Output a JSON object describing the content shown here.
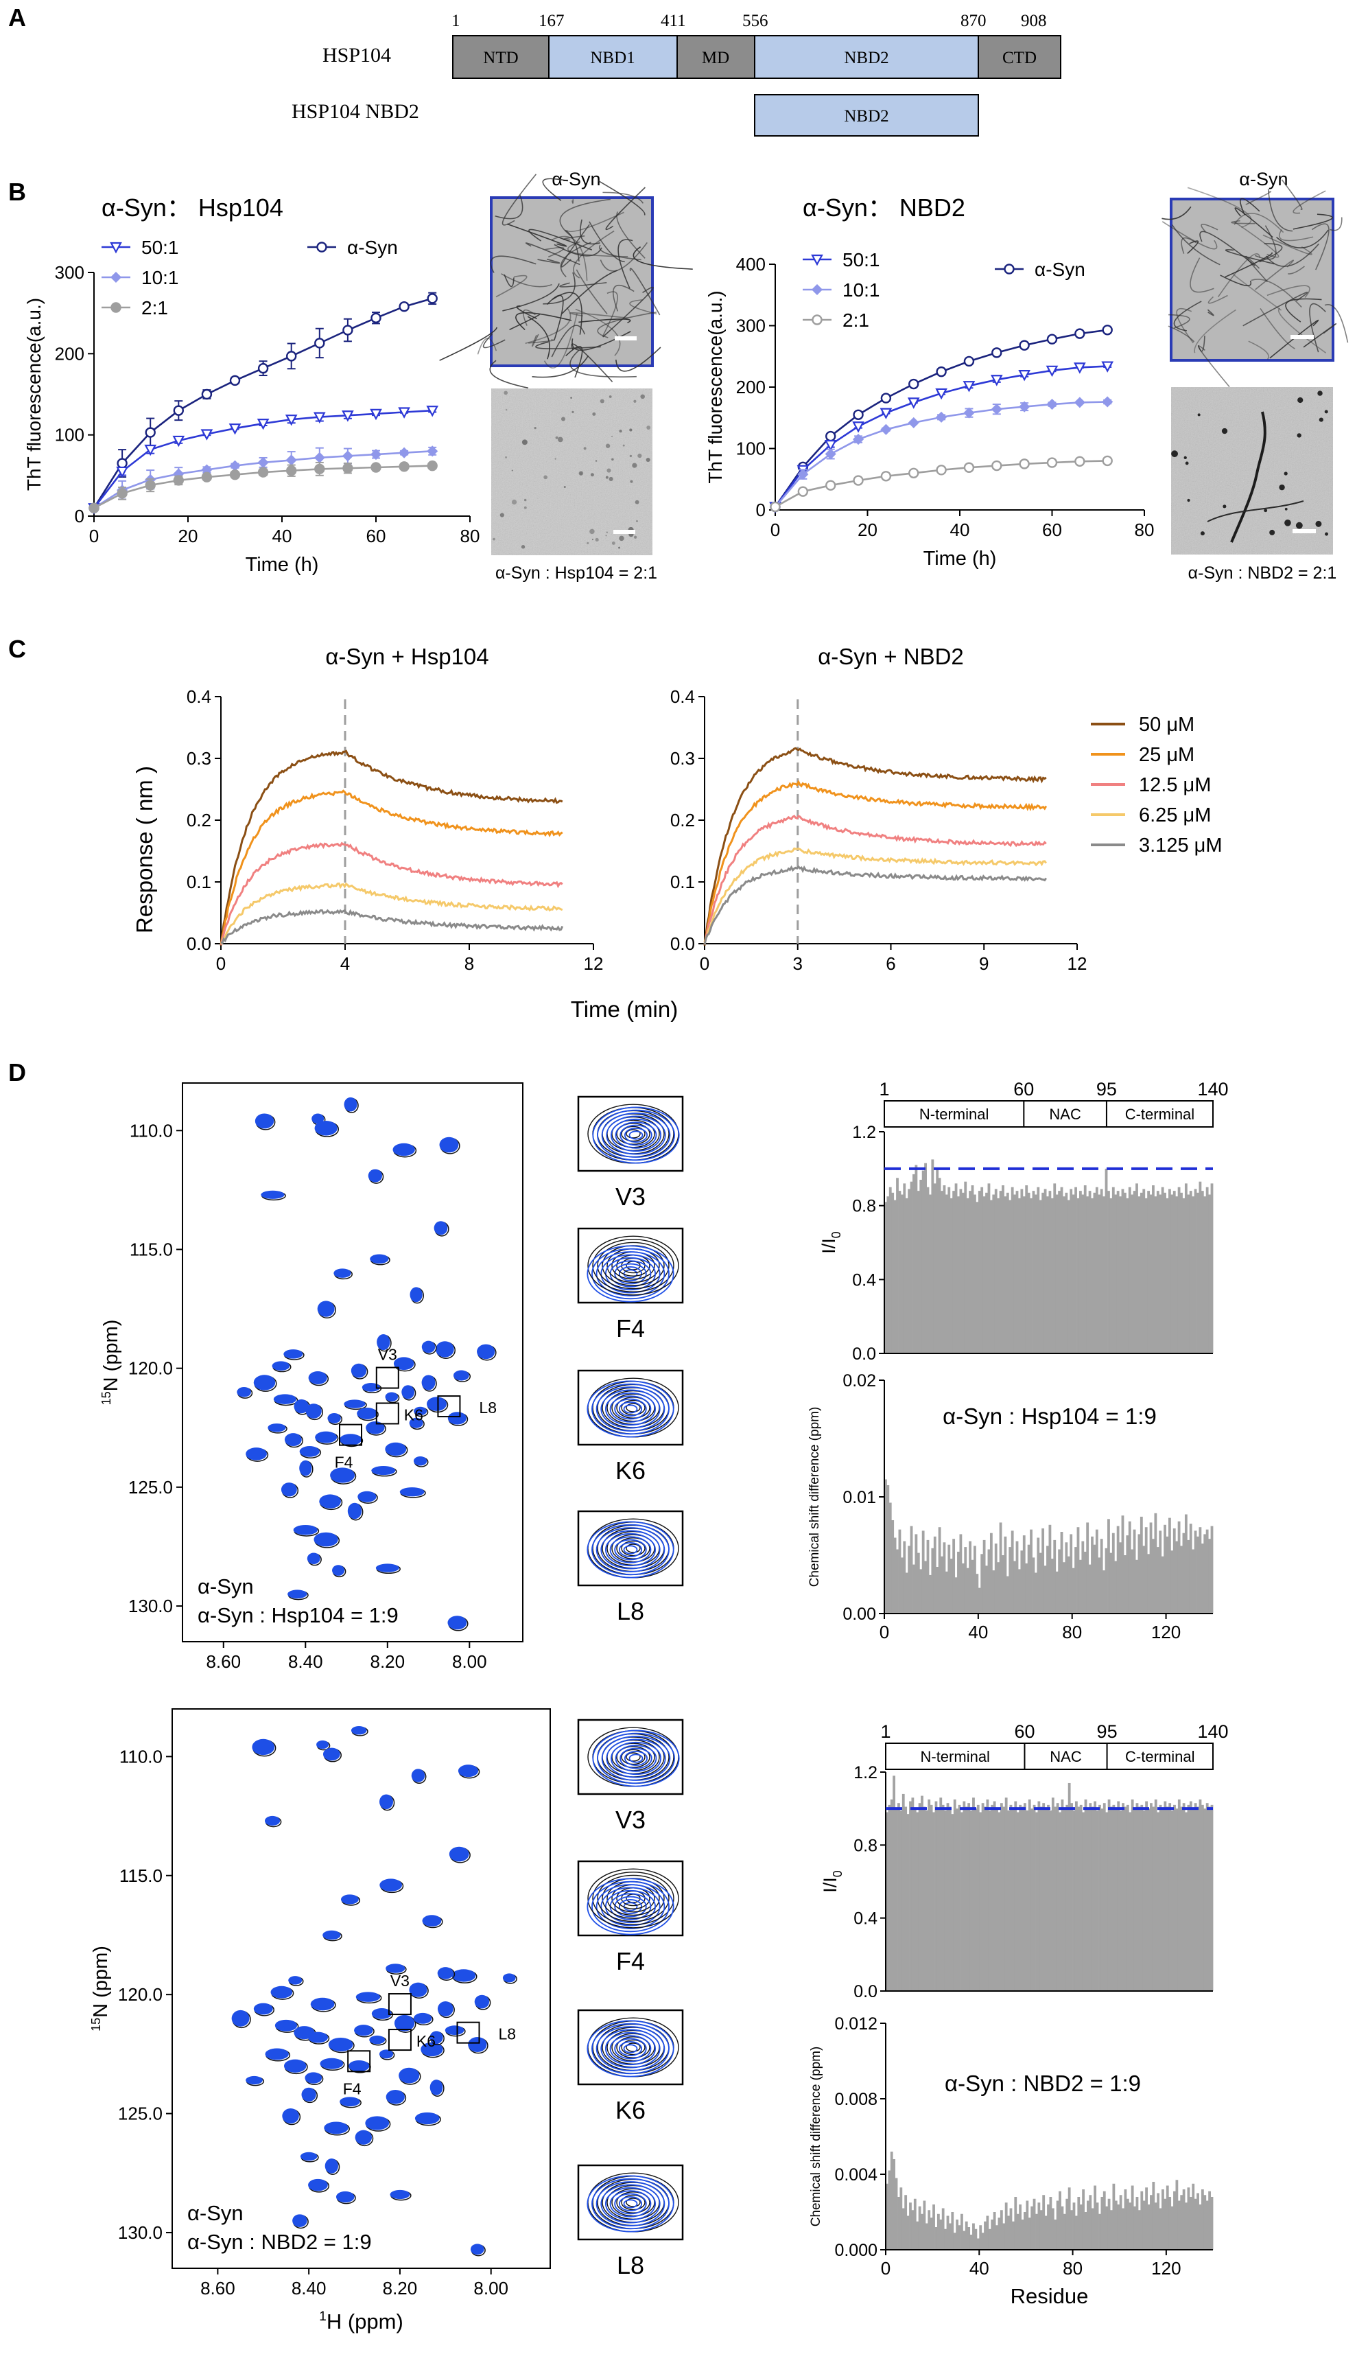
{
  "panel_labels": {
    "A": "A",
    "B": "B",
    "C": "C",
    "D": "D"
  },
  "colors": {
    "domain_gray": "#8c8c8c",
    "domain_blue": "#b7cbe9",
    "dark_navy": "#1a237e",
    "blue": "#2d39d6",
    "light_purple": "#8f97ea",
    "gray_series": "#9e9e9e",
    "nmr_blue": "#1e4fe6",
    "bar_gray": "#a3a3a3",
    "brown": "#8b4f14",
    "orange": "#f0921c",
    "salmon": "#f08080",
    "yellow": "#f5c96a",
    "gray_line": "#8a8a8a"
  },
  "panel_a": {
    "hsp104_label": "HSP104",
    "nbd2_label": "HSP104  NBD2",
    "positions": [
      "1",
      "167",
      "411",
      "556",
      "870",
      "908"
    ],
    "domains": [
      "NTD",
      "NBD1",
      "MD",
      "NBD2",
      "CTD"
    ],
    "nbd2_construct": "NBD2"
  },
  "panel_b": {
    "micrographs": [
      {
        "title": "α-Syn",
        "caption": "α-Syn : Hsp104 = 2:1"
      },
      {
        "title": "α-Syn",
        "caption": "α-Syn : NBD2 = 2:1"
      }
    ]
  },
  "chart_data": [
    {
      "type": "line",
      "title": "α-Syn： Hsp104",
      "xlabel": "Time (h)",
      "ylabel": "ThT fluorescence(a.u.)",
      "xlim": [
        0,
        80
      ],
      "ylim": [
        0,
        300
      ],
      "xticks": [
        "0",
        "20",
        "40",
        "60",
        "80"
      ],
      "yticks": [
        "0",
        "100",
        "200",
        "300"
      ],
      "x": [
        0,
        6,
        12,
        18,
        24,
        30,
        36,
        42,
        48,
        54,
        60,
        66,
        72
      ],
      "series": [
        {
          "name": "α-Syn",
          "values": [
            10,
            65,
            103,
            130,
            150,
            167,
            182,
            197,
            213,
            229,
            244,
            258,
            268
          ]
        },
        {
          "name": "50:1",
          "values": [
            10,
            55,
            82,
            93,
            101,
            108,
            114,
            119,
            122,
            124,
            126,
            128,
            130
          ]
        },
        {
          "name": "10:1",
          "values": [
            10,
            32,
            45,
            52,
            57,
            62,
            66,
            69,
            72,
            74,
            76,
            78,
            80
          ]
        },
        {
          "name": "2:1",
          "values": [
            10,
            28,
            38,
            44,
            48,
            51,
            54,
            56,
            58,
            59,
            60,
            61,
            62
          ]
        }
      ]
    },
    {
      "type": "line",
      "title": "α-Syn： NBD2",
      "xlabel": "Time (h)",
      "ylabel": "ThT fluorescence(a.u.)",
      "xlim": [
        0,
        80
      ],
      "ylim": [
        0,
        400
      ],
      "xticks": [
        "0",
        "20",
        "40",
        "60",
        "80"
      ],
      "yticks": [
        "0",
        "100",
        "200",
        "300",
        "400"
      ],
      "x": [
        0,
        6,
        12,
        18,
        24,
        30,
        36,
        42,
        48,
        54,
        60,
        66,
        72
      ],
      "series": [
        {
          "name": "α-Syn",
          "values": [
            5,
            70,
            120,
            155,
            182,
            205,
            225,
            242,
            256,
            268,
            278,
            287,
            293
          ]
        },
        {
          "name": "50:1",
          "values": [
            5,
            65,
            106,
            136,
            158,
            175,
            190,
            202,
            212,
            220,
            227,
            232,
            234
          ]
        },
        {
          "name": "10:1",
          "values": [
            5,
            58,
            91,
            115,
            131,
            142,
            151,
            158,
            164,
            168,
            172,
            175,
            176
          ]
        },
        {
          "name": "2:1",
          "values": [
            5,
            30,
            40,
            48,
            55,
            60,
            65,
            69,
            72,
            75,
            77,
            79,
            80
          ]
        }
      ]
    },
    {
      "type": "line",
      "title": "α-Syn + Hsp104",
      "xlim": [
        0,
        12
      ],
      "ylim": [
        0,
        0.4
      ],
      "xticks": [
        "0",
        "4",
        "8",
        "12"
      ],
      "yticks": [
        "0.0",
        "0.1",
        "0.2",
        "0.3",
        "0.4"
      ],
      "switch_time": 4,
      "series": [
        {
          "name": "50 μM",
          "assoc_end": 0.31,
          "dissoc_end": 0.227
        },
        {
          "name": "25 μM",
          "assoc_end": 0.245,
          "dissoc_end": 0.175
        },
        {
          "name": "12.5 μM",
          "assoc_end": 0.162,
          "dissoc_end": 0.093
        },
        {
          "name": "6.25 μM",
          "assoc_end": 0.095,
          "dissoc_end": 0.055
        },
        {
          "name": "3.125 μM",
          "assoc_end": 0.052,
          "dissoc_end": 0.024
        }
      ]
    },
    {
      "type": "line",
      "title": "α-Syn + NBD2",
      "xlim": [
        0,
        12
      ],
      "ylim": [
        0,
        0.4
      ],
      "xticks": [
        "0",
        "3",
        "6",
        "9",
        "12"
      ],
      "yticks": [
        "0.0",
        "0.1",
        "0.2",
        "0.3",
        "0.4"
      ],
      "switch_time": 3,
      "series": [
        {
          "name": "50 μM",
          "assoc_end": 0.315,
          "dissoc_end": 0.265
        },
        {
          "name": "25 μM",
          "assoc_end": 0.26,
          "dissoc_end": 0.22
        },
        {
          "name": "12.5 μM",
          "assoc_end": 0.205,
          "dissoc_end": 0.16
        },
        {
          "name": "6.25 μM",
          "assoc_end": 0.152,
          "dissoc_end": 0.13
        },
        {
          "name": "3.125 μM",
          "assoc_end": 0.122,
          "dissoc_end": 0.105
        }
      ]
    },
    {
      "type": "bar",
      "title": "I/I0",
      "ylabel": "I/I",
      "ylabel_sub": "0",
      "ylim": [
        0,
        1.2
      ],
      "yticks": [
        "0.0",
        "0.4",
        "0.8",
        "1.2"
      ],
      "reference_line": 1.0,
      "values": [
        0.82,
        0.85,
        0.9,
        0.87,
        0.83,
        0.95,
        0.88,
        0.86,
        0.92,
        0.84,
        0.89,
        0.93,
        0.97,
        1.02,
        0.88,
        0.94,
        0.99,
        1.03,
        0.9,
        0.86,
        1.05,
        0.92,
        1.0,
        0.95,
        0.88,
        0.91,
        0.86,
        0.9,
        0.84,
        0.88,
        0.92,
        0.85,
        0.89,
        0.87,
        0.93,
        0.84,
        0.88,
        0.91,
        0.86,
        0.82,
        0.88,
        0.9,
        0.85,
        0.87,
        0.92,
        0.83,
        0.86,
        0.89,
        0.84,
        0.88,
        0.91,
        0.85,
        0.87,
        0.83,
        0.9,
        0.86,
        0.88,
        0.84,
        0.89,
        0.85,
        0.91,
        0.87,
        0.84,
        0.88,
        0.86,
        0.9,
        0.83,
        0.87,
        0.89,
        0.85,
        0.88,
        0.84,
        0.92,
        0.86,
        0.88,
        0.9,
        0.85,
        0.87,
        0.83,
        0.89,
        0.86,
        0.9,
        0.84,
        0.88,
        0.86,
        0.91,
        0.85,
        0.88,
        0.84,
        0.87,
        0.9,
        0.86,
        0.89,
        0.85,
        1.0,
        0.88,
        0.84,
        0.9,
        0.86,
        0.88,
        0.85,
        0.89,
        0.87,
        0.84,
        0.9,
        0.86,
        0.88,
        0.92,
        0.85,
        0.87,
        0.89,
        0.84,
        0.88,
        0.86,
        0.91,
        0.85,
        0.88,
        0.86,
        0.9,
        0.87,
        0.84,
        0.89,
        0.86,
        0.88,
        0.85,
        0.9,
        0.87,
        0.84,
        0.92,
        0.86,
        0.88,
        0.85,
        0.89,
        0.87,
        0.93,
        0.88,
        0.85,
        0.9,
        0.86,
        0.92
      ]
    },
    {
      "type": "bar",
      "title": "α-Syn : Hsp104 = 1:9",
      "ylabel": "Chemical shift difference (ppm)",
      "ylim": [
        0,
        0.02
      ],
      "yticks": [
        "0.00",
        "0.01",
        "0.02"
      ],
      "xticks": [
        "0",
        "40",
        "80",
        "120"
      ],
      "values": [
        0.0115,
        0.011,
        0.0095,
        0.008,
        0.0065,
        0.0055,
        0.0072,
        0.0048,
        0.0062,
        0.0035,
        0.0058,
        0.0075,
        0.0042,
        0.0068,
        0.0052,
        0.0038,
        0.0071,
        0.0045,
        0.0063,
        0.0033,
        0.0056,
        0.0066,
        0.004,
        0.0074,
        0.0049,
        0.0061,
        0.0036,
        0.0059,
        0.0047,
        0.0064,
        0.0031,
        0.0053,
        0.0068,
        0.0043,
        0.0057,
        0.0039,
        0.0062,
        0.0046,
        0.0058,
        0.0034,
        0.0022,
        0.0051,
        0.0063,
        0.0041,
        0.0055,
        0.0069,
        0.0037,
        0.006,
        0.0044,
        0.0078,
        0.005,
        0.0066,
        0.0032,
        0.0057,
        0.0071,
        0.0045,
        0.0062,
        0.0038,
        0.0054,
        0.0067,
        0.0043,
        0.0059,
        0.0072,
        0.0048,
        0.0035,
        0.0065,
        0.0052,
        0.0073,
        0.0041,
        0.0058,
        0.0076,
        0.0047,
        0.0063,
        0.0036,
        0.0055,
        0.007,
        0.0044,
        0.0061,
        0.0049,
        0.0068,
        0.0039,
        0.0057,
        0.0074,
        0.0046,
        0.0062,
        0.0053,
        0.0078,
        0.0042,
        0.0066,
        0.0059,
        0.0072,
        0.0048,
        0.0064,
        0.0037,
        0.0056,
        0.0081,
        0.0052,
        0.0069,
        0.0045,
        0.0075,
        0.0061,
        0.0084,
        0.005,
        0.0067,
        0.0079,
        0.0055,
        0.0072,
        0.0046,
        0.0068,
        0.0083,
        0.0058,
        0.0074,
        0.0051,
        0.0078,
        0.0064,
        0.0086,
        0.0057,
        0.0071,
        0.0049,
        0.0076,
        0.0066,
        0.0082,
        0.0054,
        0.0073,
        0.0062,
        0.0079,
        0.0058,
        0.0069,
        0.0085,
        0.0063,
        0.0077,
        0.0055,
        0.0071,
        0.0066,
        0.0074,
        0.006,
        0.0068,
        0.0072,
        0.0064,
        0.0075
      ]
    },
    {
      "type": "bar",
      "title": "I/I0 NBD2",
      "ylabel": "I/I",
      "ylabel_sub": "0",
      "ylim": [
        0,
        1.2
      ],
      "yticks": [
        "0.0",
        "0.4",
        "0.8",
        "1.2"
      ],
      "reference_line": 1.0,
      "values": [
        0.98,
        1.02,
        1.05,
        1.18,
        1.0,
        1.03,
        0.99,
        1.08,
        1.01,
        0.97,
        1.04,
        1.06,
        1.0,
        0.98,
        1.03,
        1.07,
        1.01,
        0.99,
        1.05,
        1.02,
        0.98,
        1.04,
        1.0,
        1.06,
        1.02,
        0.99,
        1.03,
        1.01,
        0.97,
        1.05,
        1.0,
        1.02,
        0.98,
        1.04,
        1.01,
        1.03,
        0.99,
        1.06,
        1.0,
        1.02,
        0.98,
        1.03,
        1.01,
        1.05,
        0.99,
        1.02,
        1.04,
        1.0,
        0.98,
        1.03,
        1.01,
        1.06,
        0.99,
        1.02,
        1.0,
        1.04,
        0.98,
        1.02,
        1.01,
        1.03,
        0.99,
        1.05,
        1.0,
        1.02,
        0.98,
        1.04,
        1.01,
        1.03,
        1.0,
        1.02,
        0.99,
        1.06,
        1.01,
        1.03,
        0.98,
        1.05,
        1.0,
        1.02,
        1.14,
        1.03,
        0.99,
        1.04,
        1.01,
        1.02,
        0.98,
        1.05,
        1.0,
        1.03,
        1.01,
        1.04,
        0.99,
        1.02,
        1.0,
        1.03,
        0.98,
        1.05,
        1.01,
        1.02,
        1.0,
        1.04,
        0.99,
        1.03,
        1.01,
        1.02,
        0.98,
        1.05,
        1.0,
        1.03,
        1.01,
        1.02,
        0.99,
        1.04,
        1.0,
        1.03,
        1.01,
        1.05,
        0.98,
        1.02,
        1.0,
        1.04,
        1.01,
        1.03,
        0.99,
        1.02,
        1.0,
        1.05,
        1.01,
        1.03,
        0.98,
        1.02,
        1.04,
        1.0,
        1.03,
        1.01,
        1.05,
        1.02,
        1.0,
        1.03,
        1.01,
        1.02
      ]
    },
    {
      "type": "bar",
      "title": "α-Syn : NBD2 = 1:9",
      "xlabel": "Residue",
      "ylabel": "Chemical shift difference (ppm)",
      "ylim": [
        0,
        0.012
      ],
      "yticks": [
        "0.000",
        "0.004",
        "0.008",
        "0.012"
      ],
      "xticks": [
        "0",
        "40",
        "80",
        "120"
      ],
      "values": [
        0.0035,
        0.0042,
        0.0052,
        0.0048,
        0.0038,
        0.0028,
        0.0033,
        0.0022,
        0.0029,
        0.0018,
        0.0025,
        0.0021,
        0.0027,
        0.0015,
        0.0023,
        0.0019,
        0.0026,
        0.0014,
        0.0021,
        0.0017,
        0.0024,
        0.0012,
        0.0019,
        0.0016,
        0.0022,
        0.0011,
        0.0018,
        0.0014,
        0.002,
        0.0009,
        0.0016,
        0.0013,
        0.0019,
        0.001,
        0.0015,
        0.0012,
        0.0008,
        0.0014,
        0.0011,
        0.0006,
        0.0013,
        0.0009,
        0.0015,
        0.0018,
        0.0011,
        0.0016,
        0.002,
        0.0013,
        0.0017,
        0.0021,
        0.0014,
        0.0025,
        0.0018,
        0.0022,
        0.0015,
        0.0028,
        0.0019,
        0.0024,
        0.0016,
        0.002,
        0.0026,
        0.0017,
        0.0023,
        0.0027,
        0.0019,
        0.0025,
        0.0021,
        0.0029,
        0.0018,
        0.0024,
        0.0028,
        0.0022,
        0.0016,
        0.0026,
        0.0031,
        0.0023,
        0.0019,
        0.0027,
        0.0033,
        0.0021,
        0.0025,
        0.0018,
        0.0028,
        0.0024,
        0.0032,
        0.002,
        0.0026,
        0.0029,
        0.0022,
        0.0034,
        0.0025,
        0.0019,
        0.0028,
        0.0031,
        0.0023,
        0.0027,
        0.0021,
        0.0035,
        0.0026,
        0.0024,
        0.0029,
        0.0022,
        0.0032,
        0.0027,
        0.0025,
        0.0034,
        0.0023,
        0.0028,
        0.0021,
        0.0031,
        0.0026,
        0.0033,
        0.0024,
        0.0029,
        0.0036,
        0.0025,
        0.003,
        0.0022,
        0.0032,
        0.0027,
        0.0034,
        0.0028,
        0.0023,
        0.0031,
        0.0037,
        0.0026,
        0.0029,
        0.0032,
        0.0025,
        0.0033,
        0.0028,
        0.0035,
        0.0027,
        0.003,
        0.0024,
        0.0032,
        0.0029,
        0.0026,
        0.0031,
        0.0028
      ]
    }
  ],
  "panel_c": {
    "ylabel": "Response ( nm )",
    "xlabel": "Time (min)"
  },
  "panel_d": {
    "spectra": [
      {
        "label1": "α-Syn",
        "label2": "α-Syn : Hsp104 = 1:9"
      },
      {
        "label1": "α-Syn",
        "label2": "α-Syn : NBD2 = 1:9"
      }
    ],
    "ylabel_sup": "15",
    "ylabel_main": "N (ppm)",
    "xlabel_sup": "1",
    "xlabel_main": "H (ppm)",
    "y_ticks": [
      "110.0",
      "115.0",
      "120.0",
      "125.0",
      "130.0"
    ],
    "x_ticks": [
      "8.60",
      "8.40",
      "8.20",
      "8.00"
    ],
    "residues": [
      "V3",
      "F4",
      "K6",
      "L8"
    ],
    "region_ticks": [
      "1",
      "60",
      "95",
      "140"
    ],
    "regions": [
      "N-terminal",
      "NAC",
      "C-terminal"
    ]
  }
}
